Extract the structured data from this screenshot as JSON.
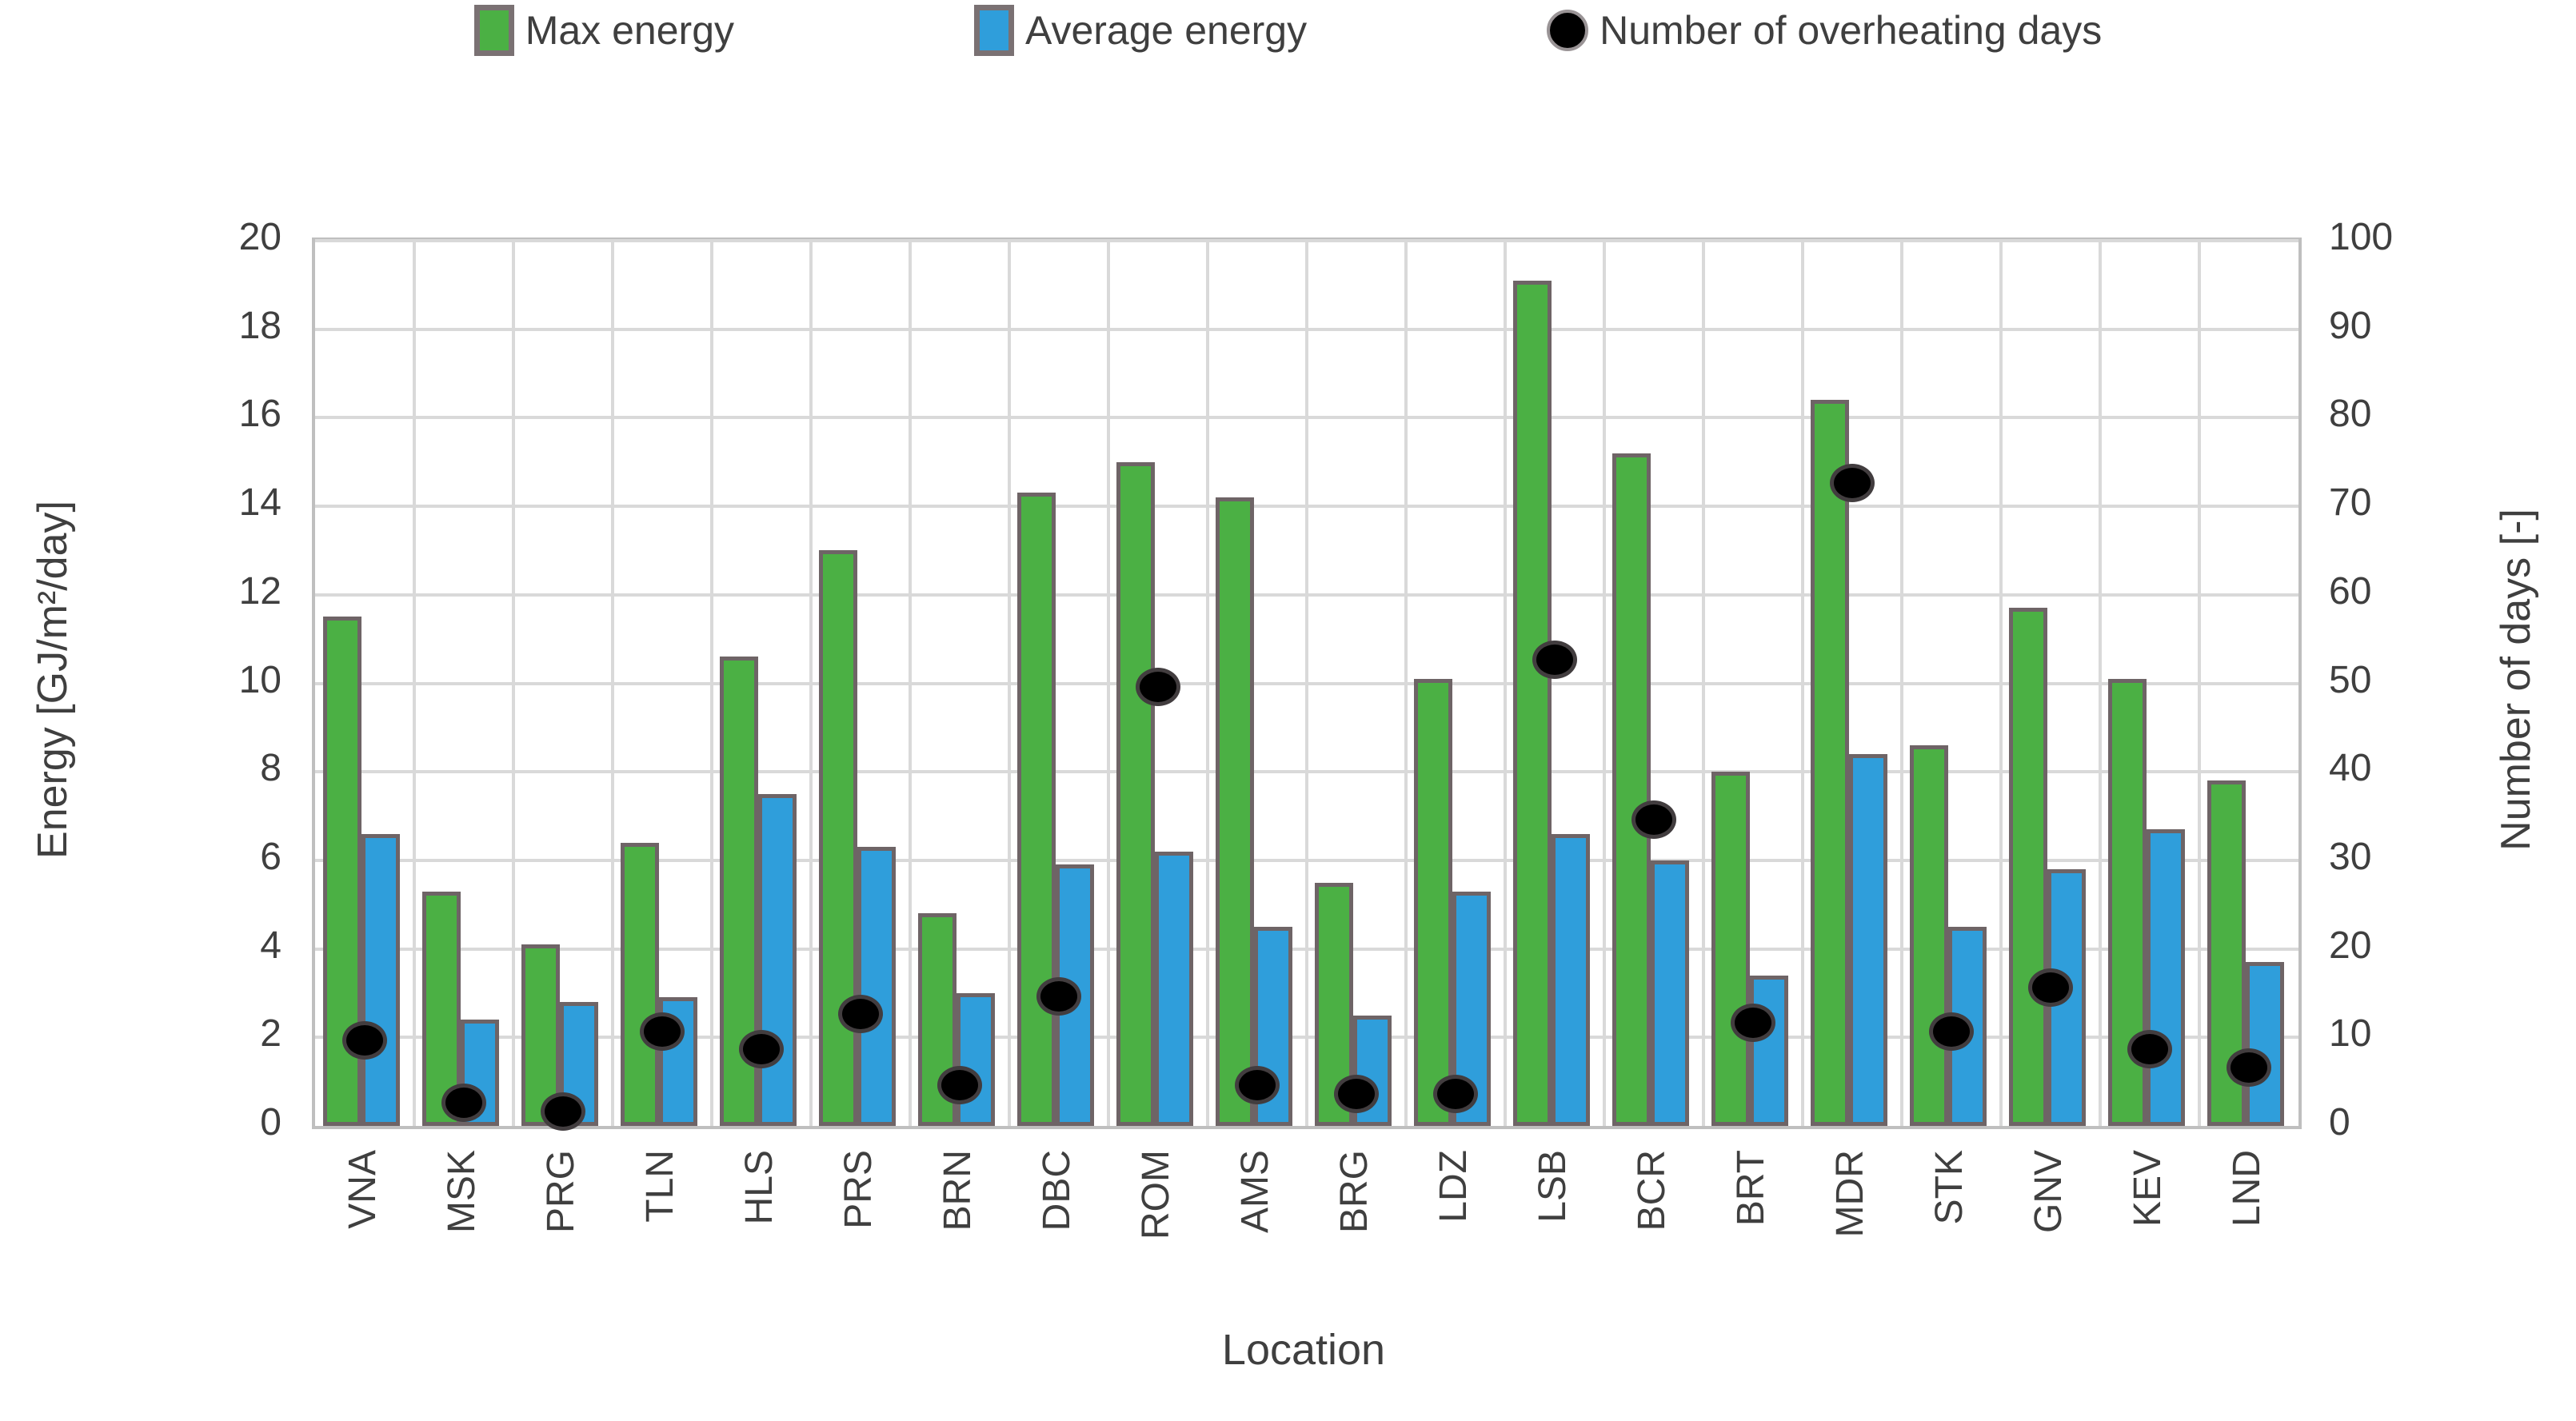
{
  "chart_data": {
    "type": "bar",
    "title": "",
    "categories": [
      "VNA",
      "MSK",
      "PRG",
      "TLN",
      "HLS",
      "PRS",
      "BRN",
      "DBC",
      "ROM",
      "AMS",
      "BRG",
      "LDZ",
      "LSB",
      "BCR",
      "BRT",
      "MDR",
      "STK",
      "GNV",
      "KEV",
      "LND"
    ],
    "series": [
      {
        "name": "Max energy",
        "type": "bar",
        "axis": "left",
        "color": "#4bb044",
        "values": [
          11.5,
          5.3,
          4.1,
          6.4,
          10.6,
          13.0,
          4.8,
          14.3,
          15.0,
          14.2,
          5.5,
          10.1,
          19.1,
          15.2,
          8.0,
          16.4,
          8.6,
          11.7,
          10.1,
          7.8
        ]
      },
      {
        "name": "Average energy",
        "type": "bar",
        "axis": "left",
        "color": "#2f9edb",
        "values": [
          6.6,
          2.4,
          2.8,
          2.9,
          7.5,
          6.3,
          3.0,
          5.9,
          6.2,
          4.5,
          2.5,
          5.3,
          6.6,
          6.0,
          3.4,
          8.4,
          4.5,
          5.8,
          6.7,
          3.7
        ]
      },
      {
        "name": "Number of overheating days",
        "type": "scatter",
        "axis": "right",
        "color": "#000000",
        "values": [
          10,
          3,
          2,
          11,
          9,
          13,
          5,
          15,
          50,
          5,
          4,
          4,
          53,
          35,
          12,
          73,
          11,
          16,
          9,
          7
        ]
      }
    ],
    "xlabel": "Location",
    "ylabel_left": "Energy [GJ/m²/day]",
    "ylabel_right": "Number of days [-]",
    "ylim_left": [
      0,
      20
    ],
    "ytick_step_left": 2,
    "ylim_right": [
      0,
      100
    ],
    "ytick_step_right": 10,
    "left_tick_labels": [
      "0",
      "2",
      "4",
      "6",
      "8",
      "10",
      "12",
      "14",
      "16",
      "18",
      "20"
    ],
    "right_tick_labels": [
      "0",
      "10",
      "20",
      "30",
      "40",
      "50",
      "60",
      "70",
      "80",
      "90",
      "100"
    ],
    "grid": true,
    "legend_position": "top"
  },
  "legend": {
    "items": [
      {
        "label": "Max energy",
        "swatch": "green-square"
      },
      {
        "label": "Average energy",
        "swatch": "blue-square"
      },
      {
        "label": "Number of overheating days",
        "swatch": "black-circle"
      }
    ]
  },
  "colors": {
    "max_bar": "#4bb044",
    "avg_bar": "#2f9edb",
    "bar_border": "#6e6466",
    "dot": "#000000",
    "gridline": "#d9d9d9",
    "plot_border": "#bfbfbf",
    "text": "#3f3f3f"
  }
}
